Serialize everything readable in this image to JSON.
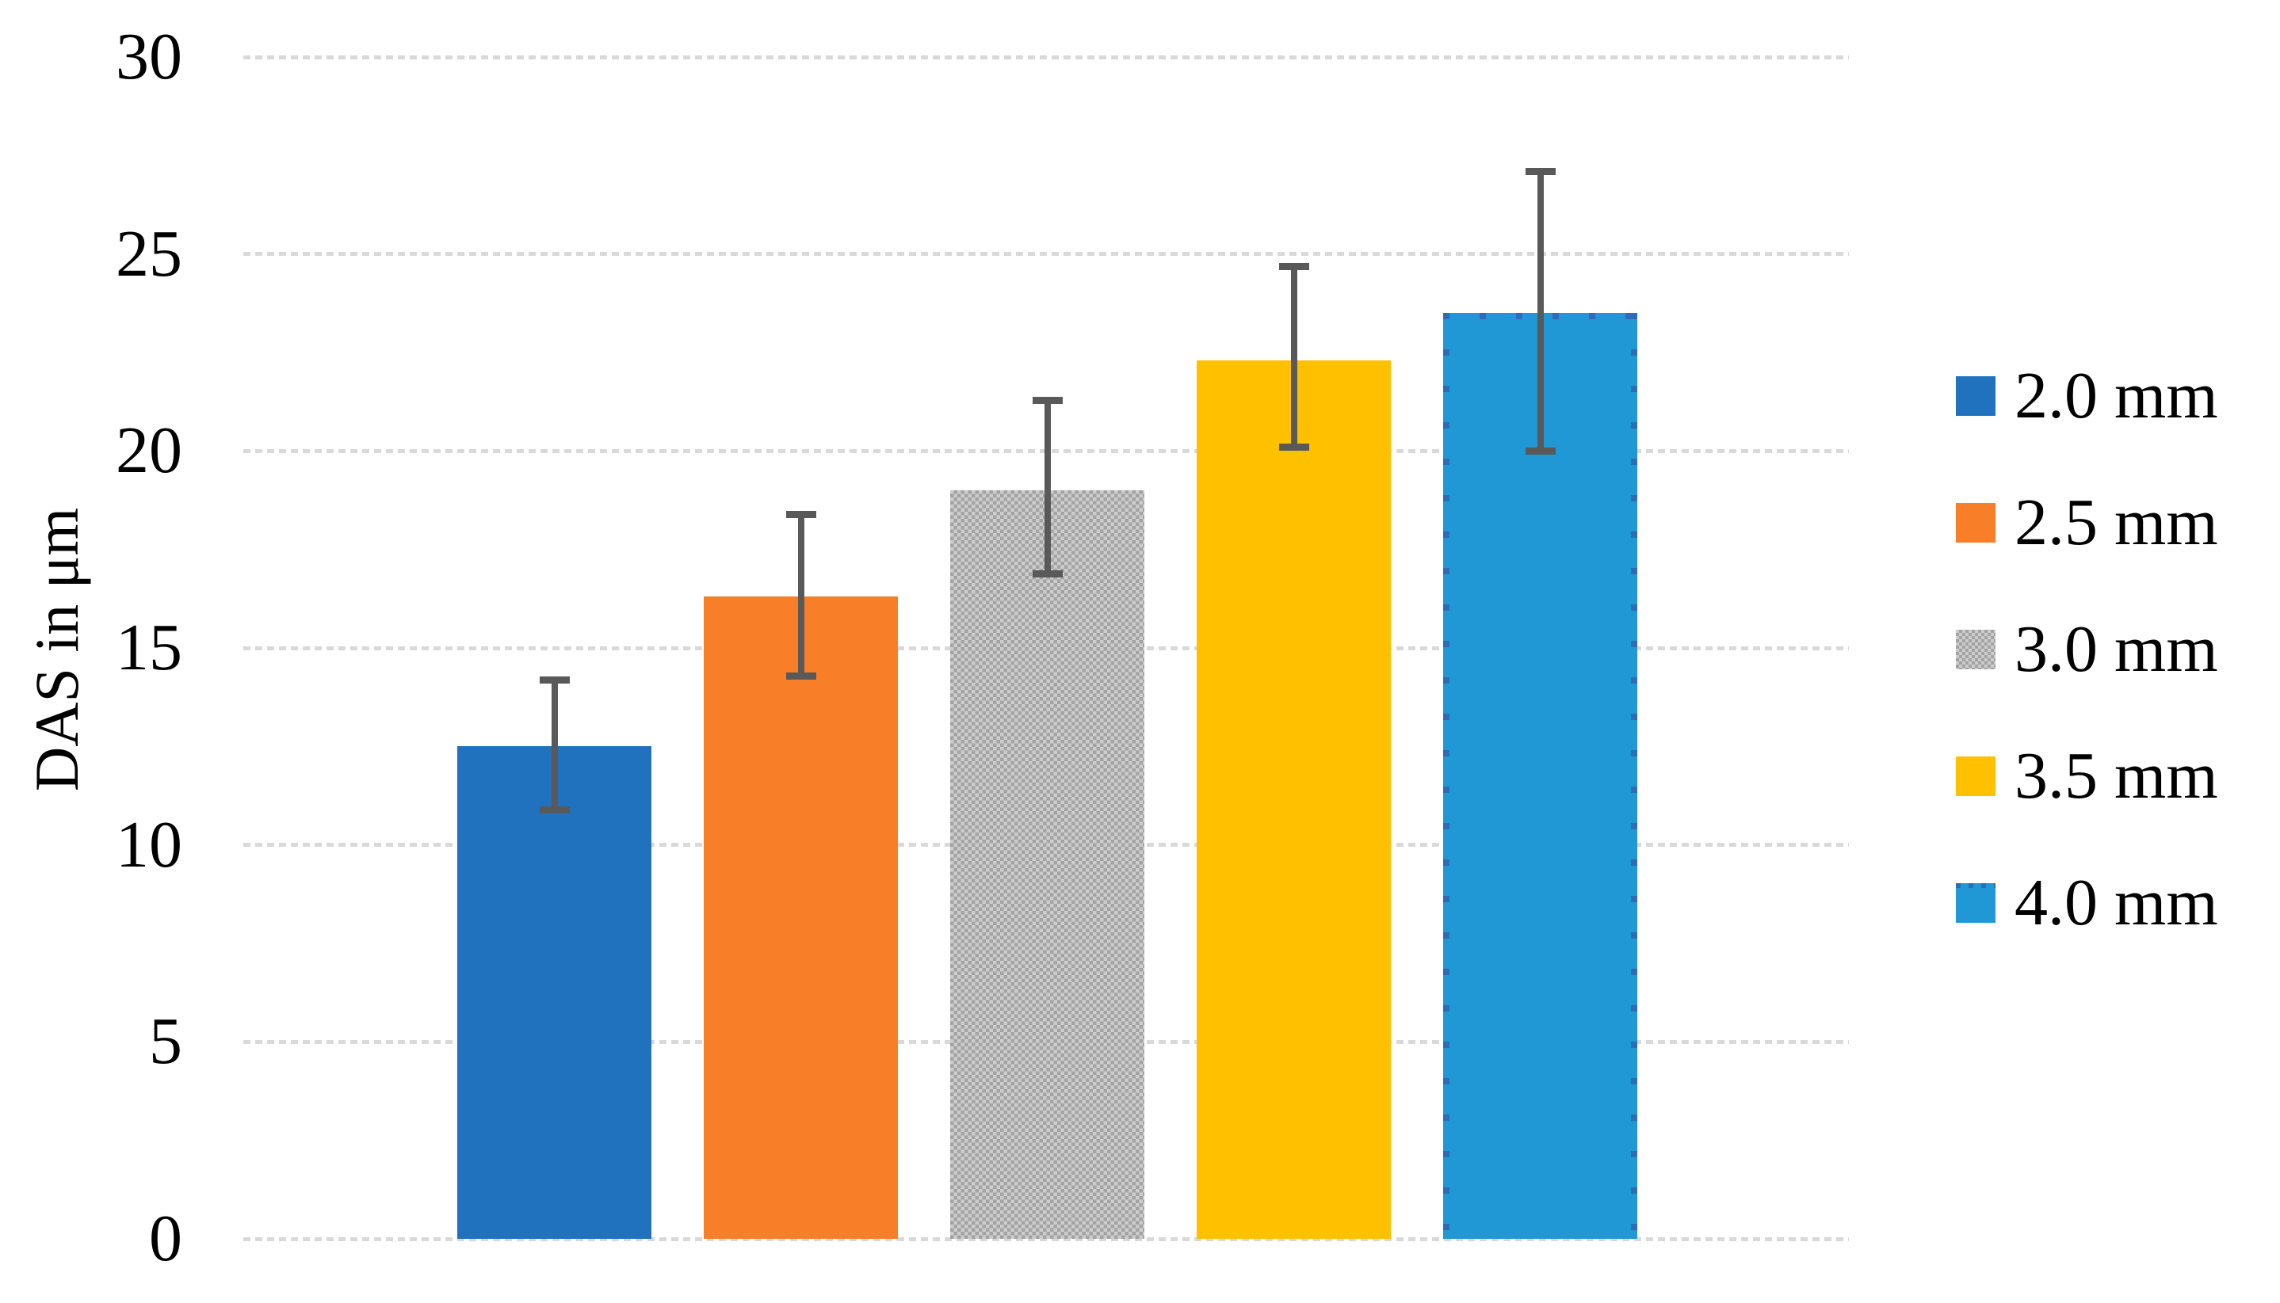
{
  "chart_data": {
    "type": "bar",
    "title": "",
    "xlabel": "",
    "ylabel": "DAS in μm",
    "ylim": [
      0,
      30
    ],
    "yticks": [
      0,
      5,
      10,
      15,
      20,
      25,
      30
    ],
    "grid": "horizontal dashed gridlines, no x-axis labels",
    "legend_position": "right",
    "gridline_color": "#D9D9D9",
    "error_bar_color": "#595959",
    "categories": [
      "2.0 mm",
      "2.5 mm",
      "3.0 mm",
      "3.5 mm",
      "4.0 mm"
    ],
    "bars": [
      {
        "label": "2.0 mm",
        "value": 12.5,
        "error_low": 10.9,
        "error_high": 14.2,
        "color": "#2072BE",
        "pattern": "solid",
        "pattern_color": "#2072BE"
      },
      {
        "label": "2.5 mm",
        "value": 16.3,
        "error_low": 14.3,
        "error_high": 18.4,
        "color": "#F87E27",
        "pattern": "solid",
        "pattern_color": "#F87E27"
      },
      {
        "label": "3.0 mm",
        "value": 19.0,
        "error_low": 16.9,
        "error_high": 21.3,
        "color": "#CCCCCC",
        "pattern": "checker",
        "pattern_color": "#A3A3A3"
      },
      {
        "label": "3.5 mm",
        "value": 22.3,
        "error_low": 20.1,
        "error_high": 24.7,
        "color": "#FFC000",
        "pattern": "solid",
        "pattern_color": "#FFC000"
      },
      {
        "label": "4.0 mm",
        "value": 23.5,
        "error_low": 20.0,
        "error_high": 27.1,
        "color": "#2098D6",
        "pattern": "edge-dots",
        "pattern_color": "#2E6CB5"
      }
    ]
  }
}
